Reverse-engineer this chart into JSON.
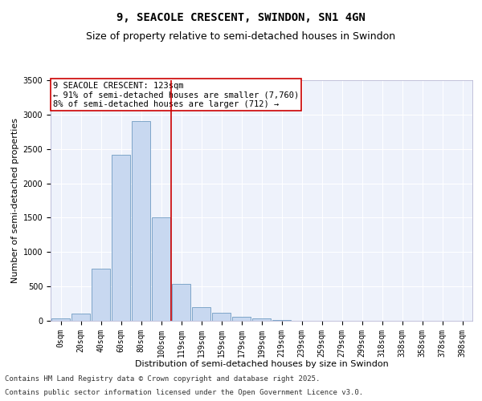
{
  "title_line1": "9, SEACOLE CRESCENT, SWINDON, SN1 4GN",
  "title_line2": "Size of property relative to semi-detached houses in Swindon",
  "xlabel": "Distribution of semi-detached houses by size in Swindon",
  "ylabel": "Number of semi-detached properties",
  "bin_labels": [
    "0sqm",
    "20sqm",
    "40sqm",
    "60sqm",
    "80sqm",
    "100sqm",
    "119sqm",
    "139sqm",
    "159sqm",
    "179sqm",
    "199sqm",
    "219sqm",
    "239sqm",
    "259sqm",
    "279sqm",
    "299sqm",
    "318sqm",
    "338sqm",
    "358sqm",
    "378sqm",
    "398sqm"
  ],
  "bar_values": [
    30,
    100,
    760,
    2420,
    2900,
    1500,
    540,
    200,
    120,
    60,
    30,
    10,
    5,
    5,
    3,
    2,
    2,
    1,
    0,
    0,
    0
  ],
  "bar_color": "#c8d8f0",
  "bar_edge_color": "#5b8db8",
  "pct_smaller": 91,
  "n_smaller": 7760,
  "pct_larger": 8,
  "n_larger": 712,
  "annotation_label": "9 SEACOLE CRESCENT: 123sqm",
  "line_color": "#cc0000",
  "box_edge_color": "#cc0000",
  "ylim": [
    0,
    3500
  ],
  "yticks": [
    0,
    500,
    1000,
    1500,
    2000,
    2500,
    3000,
    3500
  ],
  "footer_line1": "Contains HM Land Registry data © Crown copyright and database right 2025.",
  "footer_line2": "Contains public sector information licensed under the Open Government Licence v3.0.",
  "background_color": "#eef2fb",
  "grid_color": "#ffffff",
  "title_fontsize": 10,
  "subtitle_fontsize": 9,
  "axis_label_fontsize": 8,
  "tick_fontsize": 7,
  "annotation_fontsize": 7.5,
  "footer_fontsize": 6.5
}
